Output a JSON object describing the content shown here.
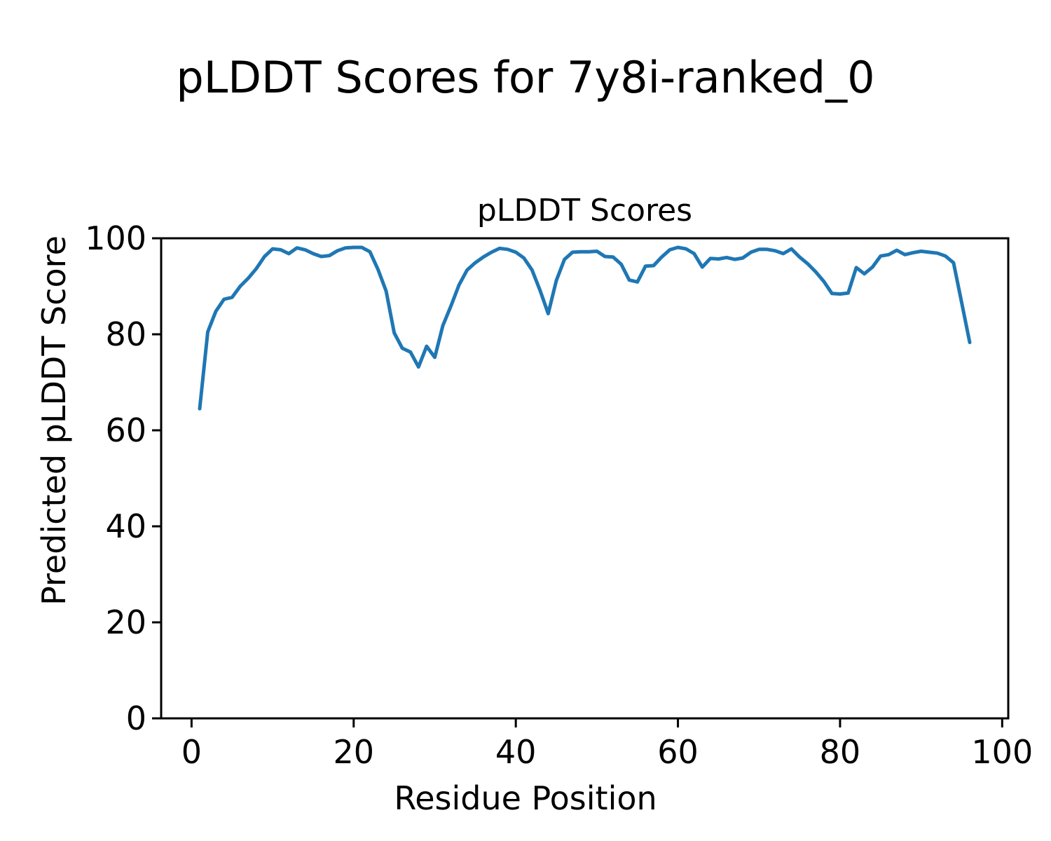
{
  "figure": {
    "suptitle": "pLDDT Scores for 7y8i-ranked_0",
    "background_color": "#ffffff",
    "text_color": "#000000",
    "spine_color": "#000000"
  },
  "chart_data": {
    "type": "line",
    "title": "pLDDT Scores",
    "xlabel": "Residue Position",
    "ylabel": "Predicted pLDDT Score",
    "grid": false,
    "legend": false,
    "xlim": [
      -3.75,
      100.75
    ],
    "ylim": [
      0,
      100
    ],
    "xticks": [
      0,
      20,
      40,
      60,
      80,
      100
    ],
    "yticks": [
      0,
      20,
      40,
      60,
      80,
      100
    ],
    "line_color": "#1f77b4",
    "series": [
      {
        "name": "pLDDT per residue",
        "x_start": 1,
        "values": [
          64.5,
          80.5,
          84.8,
          87.3,
          87.7,
          90.0,
          91.7,
          93.7,
          96.2,
          97.8,
          97.6,
          96.8,
          98.0,
          97.6,
          96.8,
          96.2,
          96.4,
          97.4,
          98.0,
          98.1,
          98.1,
          97.2,
          93.5,
          89.0,
          80.3,
          77.1,
          76.3,
          73.2,
          77.5,
          75.2,
          81.8,
          85.9,
          90.3,
          93.4,
          94.9,
          96.1,
          97.1,
          97.9,
          97.7,
          97.1,
          95.9,
          93.4,
          89.1,
          84.3,
          91.2,
          95.6,
          97.1,
          97.2,
          97.2,
          97.3,
          96.2,
          96.1,
          94.6,
          91.3,
          90.9,
          94.2,
          94.3,
          96.1,
          97.6,
          98.1,
          97.8,
          96.8,
          94.0,
          95.8,
          95.7,
          96.0,
          95.6,
          95.9,
          97.1,
          97.7,
          97.7,
          97.4,
          96.8,
          97.8,
          96.1,
          94.7,
          93.0,
          91.0,
          88.5,
          88.4,
          88.6,
          93.9,
          92.6,
          94.0,
          96.3,
          96.6,
          97.5,
          96.6,
          97.0,
          97.3,
          97.1,
          96.9,
          96.3,
          94.9,
          86.6,
          78.3
        ]
      }
    ]
  }
}
